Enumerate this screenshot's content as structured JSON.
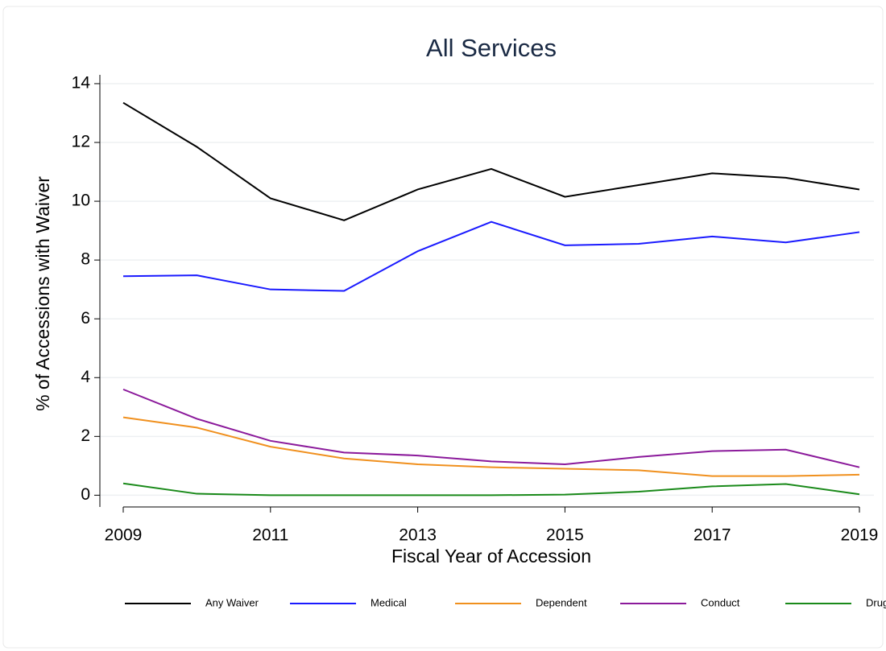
{
  "chart_data": {
    "type": "line",
    "title": "All Services",
    "x_label": "Fiscal Year of Accession",
    "y_label": "% of Accessions with Waiver",
    "x": [
      2009,
      2010,
      2011,
      2012,
      2013,
      2014,
      2015,
      2016,
      2017,
      2018,
      2019
    ],
    "series": [
      {
        "name": "Any Waiver",
        "color": "#000000",
        "values": [
          13.35,
          11.85,
          10.1,
          9.35,
          10.4,
          11.1,
          10.15,
          10.55,
          10.95,
          10.8,
          10.4
        ]
      },
      {
        "name": "Medical",
        "color": "#1a1aff",
        "values": [
          7.45,
          7.48,
          7.0,
          6.95,
          8.3,
          9.3,
          8.5,
          8.55,
          8.8,
          8.6,
          8.95
        ]
      },
      {
        "name": "Dependent",
        "color": "#f0901e",
        "values": [
          2.65,
          2.3,
          1.65,
          1.25,
          1.05,
          0.95,
          0.9,
          0.85,
          0.65,
          0.65,
          0.7
        ]
      },
      {
        "name": "Conduct",
        "color": "#8b1a9b",
        "values": [
          3.6,
          2.6,
          1.85,
          1.45,
          1.35,
          1.15,
          1.05,
          1.3,
          1.5,
          1.55,
          0.95
        ]
      },
      {
        "name": "Drug",
        "color": "#1a8a1a",
        "values": [
          0.4,
          0.05,
          0.0,
          0.0,
          0.0,
          0.0,
          0.02,
          0.12,
          0.3,
          0.38,
          0.03
        ]
      }
    ],
    "xlim": [
      2009,
      2019
    ],
    "xticks": [
      2009,
      2011,
      2013,
      2015,
      2017,
      2019
    ],
    "ylim": [
      -0.4,
      14.3
    ],
    "yticks": [
      0,
      2,
      4,
      6,
      8,
      10,
      12,
      14
    ],
    "grid": true,
    "legend": "bottom"
  }
}
